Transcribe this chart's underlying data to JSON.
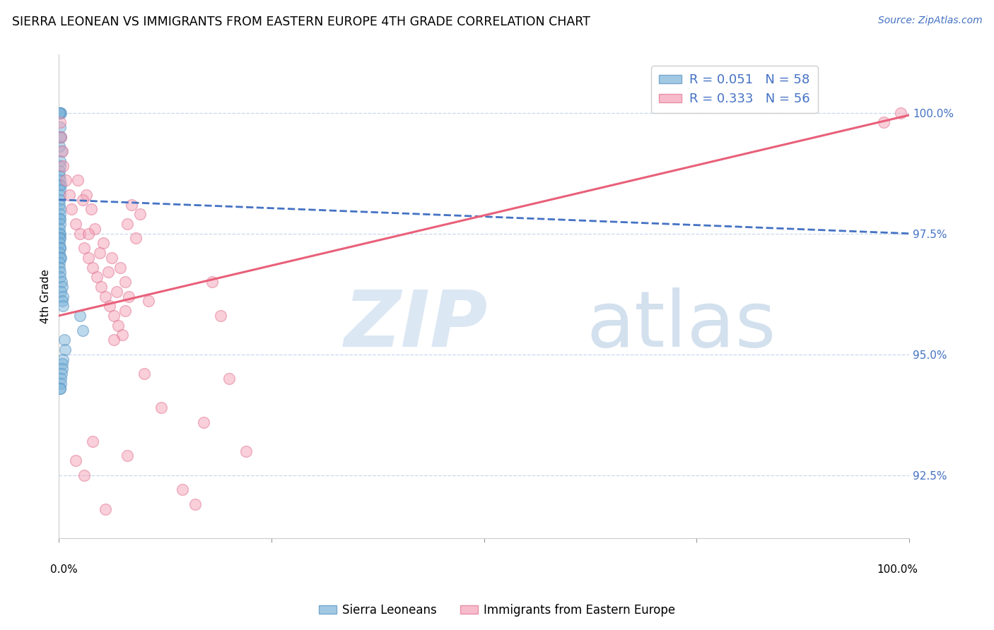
{
  "title": "SIERRA LEONEAN VS IMMIGRANTS FROM EASTERN EUROPE 4TH GRADE CORRELATION CHART",
  "source": "Source: ZipAtlas.com",
  "ylabel": "4th Grade",
  "background": "#ffffff",
  "blue_color": "#7ab3d9",
  "pink_color": "#f4a0b5",
  "blue_edge_color": "#5590c0",
  "pink_edge_color": "#e07090",
  "blue_line_color": "#4472c4",
  "pink_line_color": "#e8607a",
  "grid_color": "#c8d8ec",
  "xlim": [
    0.0,
    100.0
  ],
  "ylim": [
    91.2,
    101.2
  ],
  "yticks": [
    92.5,
    95.0,
    97.5,
    100.0
  ],
  "ytick_labels": [
    "92.5%",
    "95.0%",
    "97.5%",
    "100.0%"
  ],
  "blue_R": 0.051,
  "blue_N": 58,
  "pink_R": 0.333,
  "pink_N": 56,
  "blue_scatter_x": [
    0.1,
    0.15,
    0.2,
    0.1,
    0.12,
    0.18,
    0.08,
    0.25,
    0.3,
    0.15,
    0.1,
    0.12,
    0.08,
    0.15,
    0.1,
    0.2,
    0.15,
    0.12,
    0.1,
    0.08,
    0.12,
    0.15,
    0.1,
    0.18,
    0.12,
    0.1,
    0.08,
    0.12,
    0.15,
    0.1,
    0.08,
    0.12,
    0.15,
    0.1,
    0.2,
    0.12,
    0.1,
    0.08,
    0.15,
    0.12,
    0.3,
    0.35,
    0.25,
    0.5,
    0.4,
    0.45,
    2.5,
    2.8,
    0.6,
    0.7,
    0.5,
    0.4,
    0.35,
    0.3,
    0.25,
    0.2,
    0.15,
    0.12
  ],
  "blue_scatter_y": [
    100.0,
    100.0,
    100.0,
    100.0,
    99.7,
    99.5,
    99.3,
    99.5,
    99.2,
    99.0,
    98.8,
    98.9,
    98.7,
    98.6,
    98.5,
    98.5,
    98.4,
    98.3,
    98.2,
    98.1,
    98.0,
    97.9,
    97.8,
    97.8,
    97.7,
    97.6,
    97.5,
    97.5,
    97.4,
    97.4,
    97.3,
    97.2,
    97.2,
    97.1,
    97.0,
    97.0,
    96.9,
    96.8,
    96.7,
    96.6,
    96.5,
    96.4,
    96.3,
    96.2,
    96.1,
    96.0,
    95.8,
    95.5,
    95.3,
    95.1,
    94.9,
    94.8,
    94.7,
    94.6,
    94.5,
    94.4,
    94.3,
    94.3
  ],
  "pink_scatter_x": [
    0.15,
    0.25,
    0.4,
    0.5,
    0.8,
    1.2,
    1.5,
    2.0,
    2.5,
    3.0,
    3.5,
    4.0,
    4.5,
    5.0,
    5.5,
    6.0,
    6.5,
    7.0,
    7.5,
    8.0,
    8.5,
    9.0,
    3.2,
    3.8,
    4.2,
    5.2,
    6.2,
    7.2,
    7.8,
    8.2,
    9.5,
    10.5,
    2.2,
    2.8,
    3.5,
    4.8,
    5.8,
    6.8,
    7.8,
    2.0,
    3.0,
    4.0,
    5.5,
    6.5,
    8.0,
    10.0,
    12.0,
    14.5,
    16.0,
    17.0,
    18.0,
    19.0,
    20.0,
    22.0,
    97.0,
    99.0
  ],
  "pink_scatter_y": [
    99.8,
    99.5,
    99.2,
    98.9,
    98.6,
    98.3,
    98.0,
    97.7,
    97.5,
    97.2,
    97.0,
    96.8,
    96.6,
    96.4,
    96.2,
    96.0,
    95.8,
    95.6,
    95.4,
    97.7,
    98.1,
    97.4,
    98.3,
    98.0,
    97.6,
    97.3,
    97.0,
    96.8,
    96.5,
    96.2,
    97.9,
    96.1,
    98.6,
    98.2,
    97.5,
    97.1,
    96.7,
    96.3,
    95.9,
    92.8,
    92.5,
    93.2,
    91.8,
    95.3,
    92.9,
    94.6,
    93.9,
    92.2,
    91.9,
    93.6,
    96.5,
    95.8,
    94.5,
    93.0,
    99.8,
    100.0
  ]
}
